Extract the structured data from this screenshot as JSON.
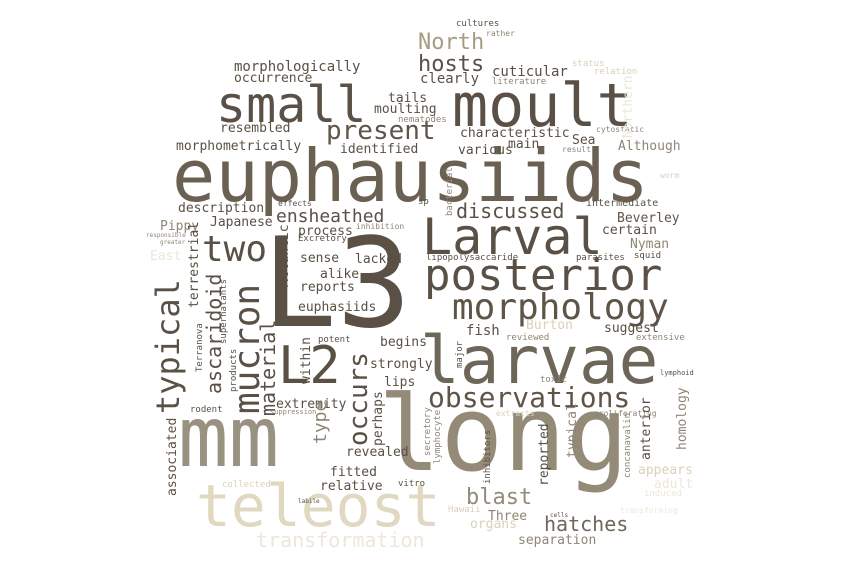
{
  "palette": {
    "dark": "#5a5045",
    "mid": "#6e6658",
    "grey": "#8e8676",
    "tan": "#a69c82",
    "pale": "#d9d1b8",
    "faint": "#ece7d8"
  },
  "words": [
    {
      "text": "L3",
      "color": "#5a5045",
      "v": false
    },
    {
      "text": "euphausiids",
      "color": "#6a6153",
      "v": false
    },
    {
      "text": "mm",
      "color": "#9a9280",
      "v": false
    },
    {
      "text": "long",
      "color": "#938b78",
      "v": false
    },
    {
      "text": "larvae",
      "color": "#6e6658",
      "v": false
    },
    {
      "text": "teleost",
      "color": "#e0d8c0",
      "v": false
    },
    {
      "text": "moult",
      "color": "#5a5045",
      "v": false
    },
    {
      "text": "small",
      "color": "#5a5045",
      "v": false
    },
    {
      "text": "Larval",
      "color": "#5a5045",
      "v": false
    },
    {
      "text": "posterior",
      "color": "#5a5045",
      "v": false
    },
    {
      "text": "morphology",
      "color": "#5e5548",
      "v": false
    },
    {
      "text": "two",
      "color": "#5a5045",
      "v": false
    },
    {
      "text": "L2",
      "color": "#5a5045",
      "v": false
    },
    {
      "text": "observations",
      "color": "#5e5548",
      "v": false
    },
    {
      "text": "mucron",
      "color": "#5a5045",
      "v": true
    },
    {
      "text": "typical",
      "color": "#5a5045",
      "v": true
    },
    {
      "text": "occurs",
      "color": "#5a5045",
      "v": true
    },
    {
      "text": "ascaridoid",
      "color": "#5a5045",
      "v": true
    },
    {
      "text": "material",
      "color": "#5a5045",
      "v": true
    },
    {
      "text": "present",
      "color": "#5e5548",
      "v": false
    },
    {
      "text": "hosts",
      "color": "#5a5045",
      "v": false
    },
    {
      "text": "North",
      "color": "#a69c82",
      "v": false
    },
    {
      "text": "discussed",
      "color": "#5a5045",
      "v": false
    },
    {
      "text": "ensheathed",
      "color": "#5a5045",
      "v": false
    },
    {
      "text": "blast",
      "color": "#938b78",
      "v": false
    },
    {
      "text": "hatches",
      "color": "#6e6658",
      "v": false
    },
    {
      "text": "transformation",
      "color": "#ece7d8",
      "v": false
    },
    {
      "text": "morphologically",
      "color": "#5a5045",
      "v": false
    },
    {
      "text": "occurrence",
      "color": "#5a5045",
      "v": false
    },
    {
      "text": "clearly",
      "color": "#5a5045",
      "v": false
    },
    {
      "text": "cuticular",
      "color": "#5a5045",
      "v": false
    },
    {
      "text": "literature",
      "color": "#8e8676",
      "v": false
    },
    {
      "text": "tails",
      "color": "#5a5045",
      "v": false
    },
    {
      "text": "moulting",
      "color": "#5a5045",
      "v": false
    },
    {
      "text": "nematodes",
      "color": "#8e8676",
      "v": false
    },
    {
      "text": "resembled",
      "color": "#5a5045",
      "v": false
    },
    {
      "text": "characteristic",
      "color": "#5a5045",
      "v": false
    },
    {
      "text": "Sea",
      "color": "#5a5045",
      "v": false
    },
    {
      "text": "main",
      "color": "#5a5045",
      "v": false
    },
    {
      "text": "result",
      "color": "#8e8676",
      "v": false
    },
    {
      "text": "cytostatic",
      "color": "#8e8676",
      "v": false
    },
    {
      "text": "Northern",
      "color": "#ece7d8",
      "v": true
    },
    {
      "text": "morphometrically",
      "color": "#5a5045",
      "v": false
    },
    {
      "text": "identified",
      "color": "#5a5045",
      "v": false
    },
    {
      "text": "various",
      "color": "#5a5045",
      "v": false
    },
    {
      "text": "Although",
      "color": "#8e8676",
      "v": false
    },
    {
      "text": "description",
      "color": "#5a5045",
      "v": false
    },
    {
      "text": "Japanese",
      "color": "#5a5045",
      "v": false
    },
    {
      "text": "Pippy",
      "color": "#8e8676",
      "v": false
    },
    {
      "text": "effects",
      "color": "#5a5045",
      "v": false
    },
    {
      "text": "inhibition",
      "color": "#8e8676",
      "v": false
    },
    {
      "text": "Excretory",
      "color": "#5a5045",
      "v": false
    },
    {
      "text": "bacterial",
      "color": "#8e8676",
      "v": true
    },
    {
      "text": "sp",
      "color": "#5a5045",
      "v": false
    },
    {
      "text": "intermediate",
      "color": "#5a5045",
      "v": false
    },
    {
      "text": "Beverley",
      "color": "#5e5548",
      "v": false
    },
    {
      "text": "certain",
      "color": "#5a5045",
      "v": false
    },
    {
      "text": "Nyman",
      "color": "#8e8676",
      "v": false
    },
    {
      "text": "squid",
      "color": "#5a5045",
      "v": false
    },
    {
      "text": "parasites",
      "color": "#5a5045",
      "v": false
    },
    {
      "text": "lipopolysaccaride",
      "color": "#5a5045",
      "v": false
    },
    {
      "text": "sense",
      "color": "#5a5045",
      "v": false
    },
    {
      "text": "lacked",
      "color": "#5a5045",
      "v": false
    },
    {
      "text": "process",
      "color": "#5a5045",
      "v": false
    },
    {
      "text": "alike",
      "color": "#5a5045",
      "v": false
    },
    {
      "text": "reports",
      "color": "#5a5045",
      "v": false
    },
    {
      "text": "euphasiids",
      "color": "#5a5045",
      "v": false
    },
    {
      "text": "Atlantic",
      "color": "#5a5045",
      "v": true
    },
    {
      "text": "terrestrial",
      "color": "#5a5045",
      "v": true
    },
    {
      "text": "Terranova",
      "color": "#5a5045",
      "v": true
    },
    {
      "text": "supernatants",
      "color": "#5a5045",
      "v": true
    },
    {
      "text": "products",
      "color": "#5a5045",
      "v": true
    },
    {
      "text": "fish",
      "color": "#5a5045",
      "v": false
    },
    {
      "text": "Burton",
      "color": "#d9d1b8",
      "v": false
    },
    {
      "text": "suggest",
      "color": "#5a5045",
      "v": false
    },
    {
      "text": "extensive",
      "color": "#8e8676",
      "v": false
    },
    {
      "text": "reviewed",
      "color": "#8e8676",
      "v": false
    },
    {
      "text": "potent",
      "color": "#5a5045",
      "v": false
    },
    {
      "text": "begins",
      "color": "#5a5045",
      "v": false
    },
    {
      "text": "major",
      "color": "#5a5045",
      "v": true
    },
    {
      "text": "within",
      "color": "#5a5045",
      "v": true
    },
    {
      "text": "strongly",
      "color": "#5a5045",
      "v": false
    },
    {
      "text": "lips",
      "color": "#5a5045",
      "v": false
    },
    {
      "text": "extremity",
      "color": "#5a5045",
      "v": false
    },
    {
      "text": "type",
      "color": "#8e8676",
      "v": true
    },
    {
      "text": "perhaps",
      "color": "#5a5045",
      "v": true
    },
    {
      "text": "revealed",
      "color": "#5a5045",
      "v": false
    },
    {
      "text": "fitted",
      "color": "#5a5045",
      "v": false
    },
    {
      "text": "relative",
      "color": "#5a5045",
      "v": false
    },
    {
      "text": "vitro",
      "color": "#5a5045",
      "v": false
    },
    {
      "text": "rodent",
      "color": "#5a5045",
      "v": false
    },
    {
      "text": "suppression",
      "color": "#8e8676",
      "v": false
    },
    {
      "text": "associated",
      "color": "#5a5045",
      "v": true
    },
    {
      "text": "collected",
      "color": "#d9d1b8",
      "v": false
    },
    {
      "text": "secretory",
      "color": "#8e8676",
      "v": true
    },
    {
      "text": "lymphocyte",
      "color": "#8e8676",
      "v": true
    },
    {
      "text": "inhibitors",
      "color": "#5a5045",
      "v": true
    },
    {
      "text": "reported",
      "color": "#5a5045",
      "v": true
    },
    {
      "text": "typical",
      "color": "#8e8676",
      "v": true
    },
    {
      "text": "anterior",
      "color": "#5a5045",
      "v": true
    },
    {
      "text": "concanavalin",
      "color": "#8e8676",
      "v": true
    },
    {
      "text": "homology",
      "color": "#8e8676",
      "v": true
    },
    {
      "text": "appears",
      "color": "#d9d1b8",
      "v": false
    },
    {
      "text": "adult",
      "color": "#ece7d8",
      "v": false
    },
    {
      "text": "induced",
      "color": "#ece7d8",
      "v": false
    },
    {
      "text": "toxic",
      "color": "#8e8676",
      "v": false
    },
    {
      "text": "proliferating",
      "color": "#8e8676",
      "v": false
    },
    {
      "text": "extracts",
      "color": "#d9d1b8",
      "v": false
    },
    {
      "text": "lymphoid",
      "color": "#5a5045",
      "v": false
    },
    {
      "text": "Hawaii",
      "color": "#d9d1b8",
      "v": false
    },
    {
      "text": "organs",
      "color": "#d9d1b8",
      "v": false
    },
    {
      "text": "Three",
      "color": "#8e8676",
      "v": false
    },
    {
      "text": "labile",
      "color": "#5a5045",
      "v": false
    },
    {
      "text": "cells",
      "color": "#5a5045",
      "v": false
    },
    {
      "text": "separation",
      "color": "#8e8676",
      "v": false
    },
    {
      "text": "cultures",
      "color": "#5a5045",
      "v": false
    },
    {
      "text": "rather",
      "color": "#8e8676",
      "v": false
    },
    {
      "text": "status",
      "color": "#d9d1b8",
      "v": false
    },
    {
      "text": "relation",
      "color": "#d9d1b8",
      "v": false
    },
    {
      "text": "responsible",
      "color": "#8e8676",
      "v": false
    },
    {
      "text": "greater",
      "color": "#8e8676",
      "v": false
    },
    {
      "text": "East",
      "color": "#ece7d8",
      "v": false
    },
    {
      "text": "worm",
      "color": "#d9d1b8",
      "v": false
    },
    {
      "text": "transforming",
      "color": "#ece7d8",
      "v": false
    }
  ]
}
